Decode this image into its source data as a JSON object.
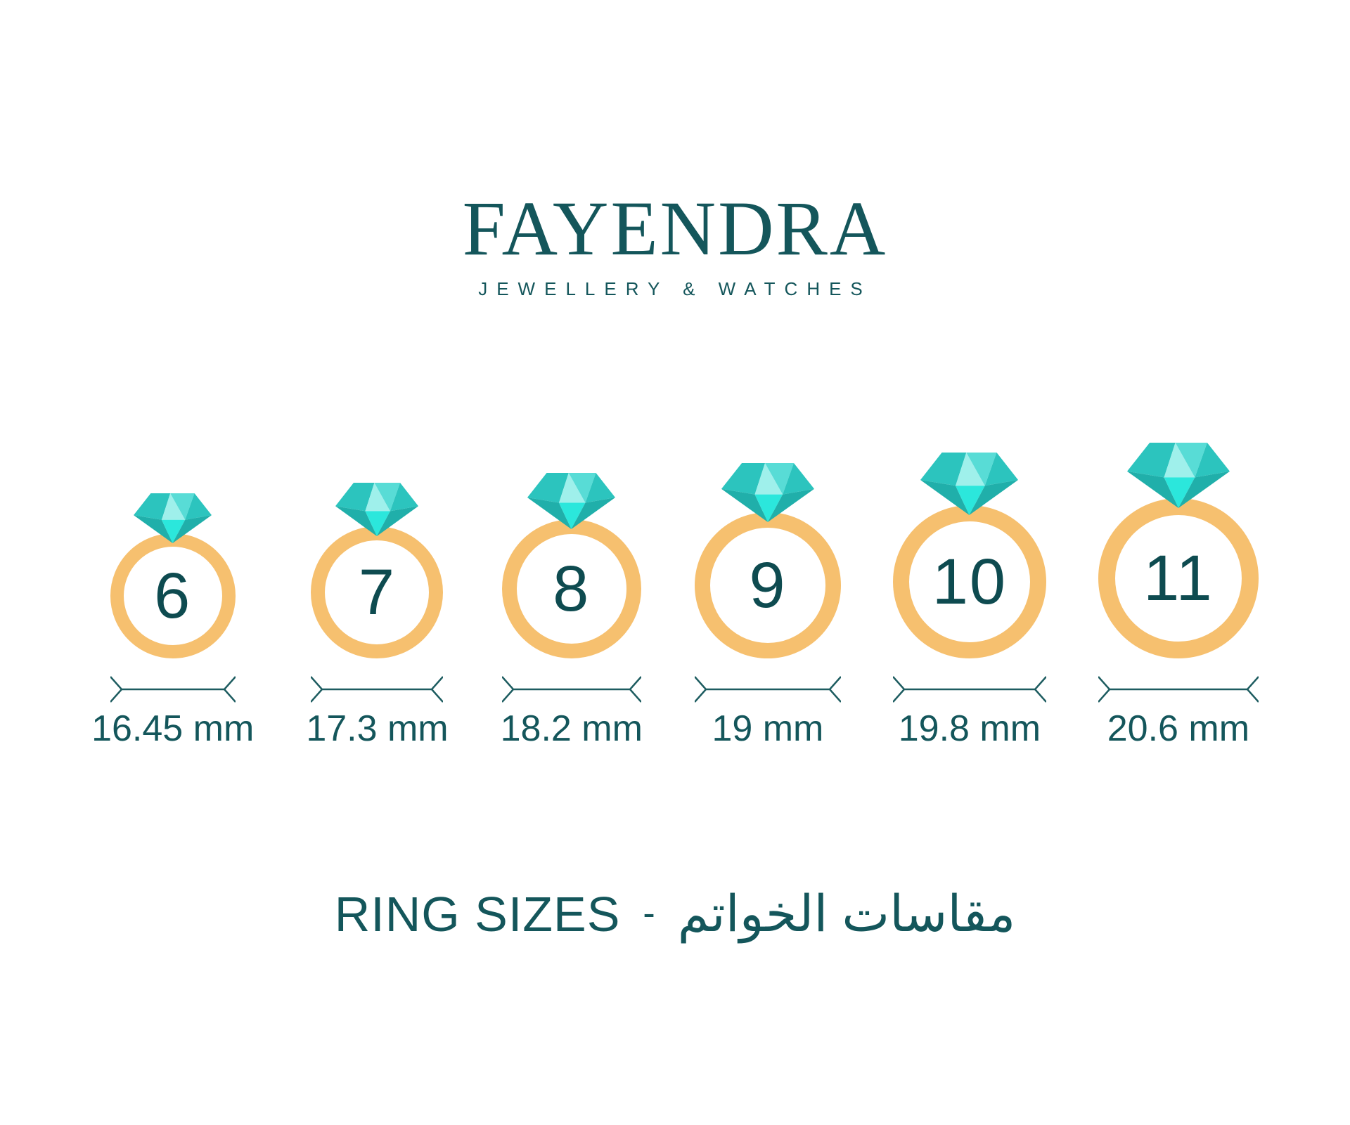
{
  "brand": {
    "name": "FAYENDRA",
    "tagline": "JEWELLERY & WATCHES"
  },
  "title": {
    "en": "RING SIZES",
    "separator": "-",
    "ar": "مقاسات الخواتم"
  },
  "colors": {
    "background": "#FFFFFF",
    "text_teal": "#14565B",
    "number_teal": "#0E4B50",
    "dimension_line": "#1D5C60",
    "band_gold": "#F6C06F",
    "diamond_medium": "#2CC4BE",
    "diamond_light": "#9FF0EB",
    "diamond_midlight": "#58DCD6",
    "diamond_bright": "#2BE7DC",
    "diamond_dark": "#20AFAA"
  },
  "rings": [
    {
      "size": "6",
      "diameter_label": "16.45 mm"
    },
    {
      "size": "7",
      "diameter_label": "17.3 mm"
    },
    {
      "size": "8",
      "diameter_label": "18.2 mm"
    },
    {
      "size": "9",
      "diameter_label": "19 mm"
    },
    {
      "size": "10",
      "diameter_label": "19.8 mm"
    },
    {
      "size": "11",
      "diameter_label": "20.6 mm"
    }
  ],
  "chart_data": {
    "type": "table",
    "title": "RING SIZES - مقاسات الخواتم",
    "columns": [
      "ring_size",
      "inner_diameter"
    ],
    "rows": [
      [
        "6",
        "16.45 mm"
      ],
      [
        "7",
        "17.3 mm"
      ],
      [
        "8",
        "18.2 mm"
      ],
      [
        "9",
        "19 mm"
      ],
      [
        "10",
        "19.8 mm"
      ],
      [
        "11",
        "20.6 mm"
      ]
    ]
  }
}
